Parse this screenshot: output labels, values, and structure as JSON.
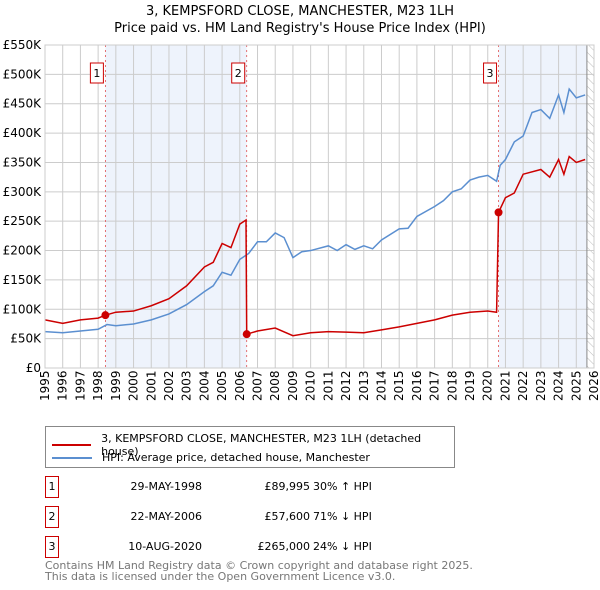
{
  "title": "3, KEMPSFORD CLOSE, MANCHESTER, M23 1LH",
  "subtitle": "Price paid vs. HM Land Registry's House Price Index (HPI)",
  "chart_data": {
    "type": "line",
    "ylim": [
      0,
      550000
    ],
    "xlim": [
      1995,
      2026
    ],
    "yticks": [
      {
        "v": 0,
        "label": "£0"
      },
      {
        "v": 50000,
        "label": "£50K"
      },
      {
        "v": 100000,
        "label": "£100K"
      },
      {
        "v": 150000,
        "label": "£150K"
      },
      {
        "v": 200000,
        "label": "£200K"
      },
      {
        "v": 250000,
        "label": "£250K"
      },
      {
        "v": 300000,
        "label": "£300K"
      },
      {
        "v": 350000,
        "label": "£350K"
      },
      {
        "v": 400000,
        "label": "£400K"
      },
      {
        "v": 450000,
        "label": "£450K"
      },
      {
        "v": 500000,
        "label": "£500K"
      },
      {
        "v": 550000,
        "label": "£550K"
      }
    ],
    "xticks": [
      "1995",
      "1996",
      "1997",
      "1998",
      "1999",
      "2000",
      "2001",
      "2002",
      "2003",
      "2004",
      "2005",
      "2006",
      "2007",
      "2008",
      "2009",
      "2010",
      "2011",
      "2012",
      "2013",
      "2014",
      "2015",
      "2016",
      "2017",
      "2018",
      "2019",
      "2020",
      "2021",
      "2022",
      "2023",
      "2024",
      "2025",
      "2026"
    ],
    "series": [
      {
        "name": "3, KEMPSFORD CLOSE, MANCHESTER, M23 1LH (detached house)",
        "color": "#cc0000",
        "x": [
          1995,
          1996,
          1997,
          1998,
          1998.41,
          1999,
          2000,
          2001,
          2002,
          2003,
          2004,
          2004.5,
          2005,
          2005.5,
          2006,
          2006.35,
          2006.39,
          2007,
          2008,
          2009,
          2010,
          2011,
          2012,
          2013,
          2014,
          2015,
          2016,
          2017,
          2018,
          2019,
          2020,
          2020.5,
          2020.61,
          2021,
          2021.5,
          2022,
          2023,
          2023.5,
          2024,
          2024.3,
          2024.6,
          2025,
          2025.5
        ],
        "y": [
          82000,
          76000,
          82000,
          85000,
          89995,
          95000,
          97000,
          106000,
          118000,
          140000,
          172000,
          180000,
          212000,
          205000,
          245000,
          252000,
          57600,
          63000,
          68000,
          55000,
          60000,
          62000,
          61000,
          60000,
          65000,
          70000,
          76000,
          82000,
          90000,
          95000,
          97000,
          95000,
          265000,
          290000,
          298000,
          330000,
          338000,
          325000,
          355000,
          330000,
          360000,
          350000,
          355000
        ]
      },
      {
        "name": "HPI: Average price, detached house, Manchester",
        "color": "#5b8fd0",
        "x": [
          1995,
          1996,
          1997,
          1998,
          1998.5,
          1999,
          2000,
          2001,
          2002,
          2003,
          2004,
          2004.5,
          2005,
          2005.5,
          2006,
          2006.5,
          2007,
          2007.5,
          2008,
          2008.5,
          2009,
          2009.5,
          2010,
          2011,
          2011.5,
          2012,
          2012.5,
          2013,
          2013.5,
          2014,
          2015,
          2015.5,
          2016,
          2017,
          2017.5,
          2018,
          2018.5,
          2019,
          2019.5,
          2020,
          2020.5,
          2020.7,
          2021,
          2021.5,
          2022,
          2022.5,
          2023,
          2023.5,
          2024,
          2024.3,
          2024.6,
          2025,
          2025.5
        ],
        "y": [
          62000,
          60000,
          63000,
          66000,
          74000,
          72000,
          75000,
          82000,
          92000,
          108000,
          130000,
          140000,
          163000,
          158000,
          185000,
          195000,
          215000,
          215000,
          230000,
          222000,
          188000,
          198000,
          200000,
          208000,
          200000,
          210000,
          202000,
          208000,
          203000,
          218000,
          237000,
          238000,
          258000,
          275000,
          285000,
          300000,
          305000,
          320000,
          325000,
          328000,
          318000,
          345000,
          355000,
          385000,
          395000,
          435000,
          440000,
          425000,
          465000,
          435000,
          475000,
          460000,
          465000
        ]
      }
    ],
    "sales": [
      {
        "label": "1",
        "x": 1998.41,
        "y": 89995
      },
      {
        "label": "2",
        "x": 2006.39,
        "y": 57600
      },
      {
        "label": "3",
        "x": 2020.61,
        "y": 265000
      }
    ],
    "hatched_from": 2025.6
  },
  "legend": {
    "red": "3, KEMPSFORD CLOSE, MANCHESTER, M23 1LH (detached house)",
    "blue": "HPI: Average price, detached house, Manchester"
  },
  "transactions": [
    {
      "num": "1",
      "date": "29-MAY-1998",
      "price": "£89,995",
      "hpi": "30% ↑ HPI"
    },
    {
      "num": "2",
      "date": "22-MAY-2006",
      "price": "£57,600",
      "hpi": "71% ↓ HPI"
    },
    {
      "num": "3",
      "date": "10-AUG-2020",
      "price": "£265,000",
      "hpi": "24% ↓ HPI"
    }
  ],
  "footer": [
    "Contains HM Land Registry data © Crown copyright and database right 2025.",
    "This data is licensed under the Open Government Licence v3.0."
  ]
}
